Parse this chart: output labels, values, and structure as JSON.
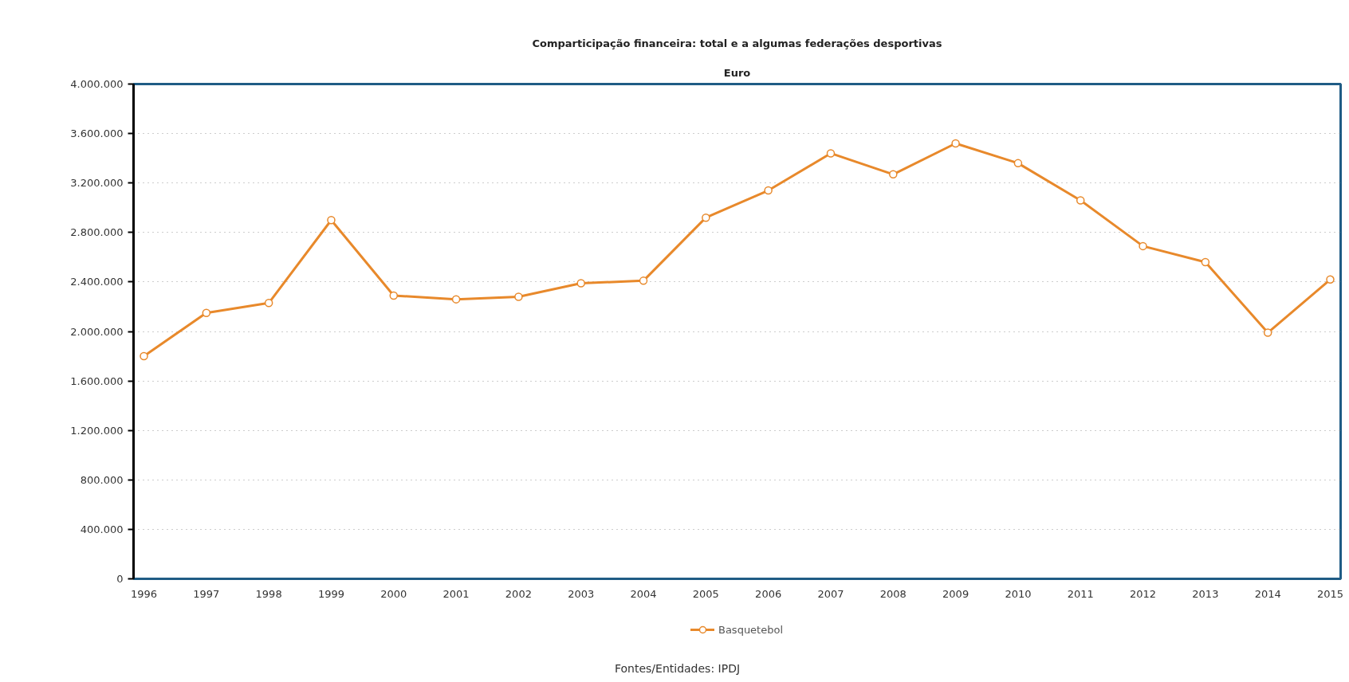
{
  "chart_data": {
    "type": "line",
    "title": "Comparticipação financeira: total e a algumas federações desportivas",
    "subtitle": "Euro",
    "annotations": [
      "Fontes/Entidades: IPDJ"
    ],
    "categories": [
      "1996",
      "1997",
      "1998",
      "1999",
      "2000",
      "2001",
      "2002",
      "2003",
      "2004",
      "2005",
      "2006",
      "2007",
      "2008",
      "2009",
      "2010",
      "2011",
      "2012",
      "2013",
      "2014",
      "2015"
    ],
    "series": [
      {
        "name": "Basquetebol",
        "color": "#e8892b",
        "values": [
          1800000,
          2150000,
          2230000,
          2900000,
          2290000,
          2260000,
          2280000,
          2390000,
          2410000,
          2920000,
          3140000,
          3440000,
          3270000,
          3520000,
          3360000,
          3060000,
          2690000,
          2560000,
          1990000,
          2420000
        ]
      }
    ],
    "ylim": [
      0,
      4000000
    ],
    "yticks": [
      0,
      {
        "value": 400000,
        "label": "400.000"
      },
      {
        "value": 800000,
        "label": "800.000"
      },
      {
        "value": 1200000,
        "label": "1.200.000"
      },
      {
        "value": 1600000,
        "label": "1.600.000"
      },
      {
        "value": 2000000,
        "label": "2.000.000"
      },
      {
        "value": 2400000,
        "label": "2.400.000"
      },
      {
        "value": 2800000,
        "label": "2.800.000"
      },
      {
        "value": 3200000,
        "label": "3.200.000"
      },
      {
        "value": 3600000,
        "label": "3.600.000"
      },
      {
        "value": 4000000,
        "label": "4.000.000"
      }
    ],
    "grid": "y",
    "legend": "bottom",
    "marker": "circle",
    "line_style": "solid"
  }
}
